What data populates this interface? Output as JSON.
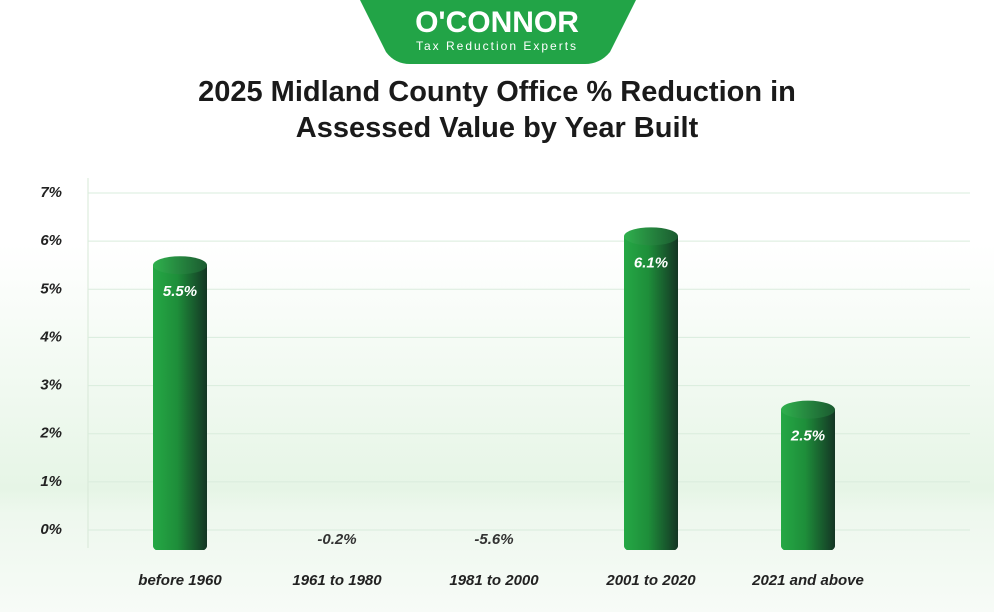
{
  "logo": {
    "name": "O'CONNOR",
    "tagline": "Tax Reduction Experts"
  },
  "chart_data": {
    "type": "bar",
    "title": "2025 Midland County Office % Reduction in Assessed Value by Year Built",
    "categories": [
      "before 1960",
      "1961 to 1980",
      "1981 to 2000",
      "2001 to 2020",
      "2021 and above"
    ],
    "values": [
      5.5,
      -0.2,
      -5.6,
      6.1,
      2.5
    ],
    "value_labels": [
      "5.5%",
      "-0.2%",
      "-5.6%",
      "6.1%",
      "2.5%"
    ],
    "color": "#1f9a3f",
    "ylim": [
      0,
      7
    ],
    "yticks": [
      {
        "value": 0,
        "label": "0%"
      },
      {
        "value": 1,
        "label": "1%"
      },
      {
        "value": 2,
        "label": "2%"
      },
      {
        "value": 3,
        "label": "3%"
      },
      {
        "value": 4,
        "label": "4%"
      },
      {
        "value": 5,
        "label": "5%"
      },
      {
        "value": 6,
        "label": "6%"
      },
      {
        "value": 7,
        "label": "7%"
      }
    ],
    "grid": true
  }
}
